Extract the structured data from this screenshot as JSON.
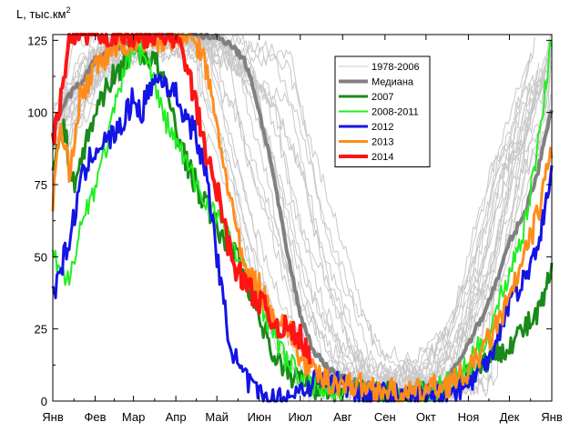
{
  "chart_data": {
    "type": "line",
    "ylabel": "L, тыс.км",
    "ylabel_sup": "2",
    "ylim": [
      0,
      127
    ],
    "yticks": [
      0,
      25,
      50,
      75,
      100,
      125
    ],
    "xlim": [
      0,
      365
    ],
    "month_labels": [
      "Янв",
      "Фев",
      "Мар",
      "Апр",
      "Май",
      "Июн",
      "Июл",
      "Авг",
      "Сен",
      "Окт",
      "Ноя",
      "Дек",
      "Янв"
    ],
    "month_days": [
      0,
      31,
      59,
      90,
      120,
      151,
      181,
      212,
      243,
      273,
      304,
      334,
      365
    ],
    "grid": false,
    "legend_position": "top-right-inside",
    "series": [
      {
        "name": "1978-2006",
        "color": "#c8c8c8",
        "width": 1,
        "kind": "band",
        "x": [
          0,
          31,
          59,
          90,
          120,
          140,
          151,
          165,
          181,
          200,
          212,
          243,
          273,
          290,
          304,
          320,
          334,
          350,
          365
        ],
        "y": [
          95,
          118,
          126,
          127,
          124,
          112,
          95,
          72,
          45,
          20,
          10,
          3,
          3,
          10,
          25,
          50,
          75,
          100,
          120
        ]
      },
      {
        "name": "Медиана",
        "color": "#808080",
        "width": 4,
        "x": [
          0,
          5,
          10,
          20,
          31,
          45,
          59,
          75,
          90,
          105,
          120,
          130,
          140,
          145,
          151,
          160,
          170,
          181,
          190,
          200,
          212,
          225,
          243,
          260,
          273,
          285,
          295,
          304,
          315,
          325,
          334,
          345,
          355,
          365
        ],
        "y": [
          95,
          100,
          105,
          110,
          118,
          122,
          126,
          127,
          127,
          127,
          126,
          124,
          118,
          112,
          100,
          82,
          55,
          30,
          18,
          12,
          8,
          6,
          4,
          3,
          4,
          6,
          12,
          20,
          30,
          42,
          55,
          65,
          80,
          102
        ]
      },
      {
        "name": "2007",
        "color": "#1a8a1a",
        "width": 3,
        "x": [
          0,
          8,
          15,
          25,
          31,
          40,
          50,
          59,
          65,
          75,
          85,
          90,
          100,
          110,
          120,
          128,
          135,
          142,
          151,
          160,
          170,
          181,
          192,
          205,
          212,
          225,
          243,
          258,
          273,
          288,
          304,
          320,
          334,
          345,
          355,
          365
        ],
        "y": [
          82,
          95,
          75,
          90,
          100,
          110,
          115,
          124,
          120,
          118,
          105,
          95,
          80,
          70,
          60,
          55,
          50,
          42,
          30,
          18,
          10,
          8,
          5,
          4,
          6,
          3,
          2,
          3,
          2,
          5,
          10,
          15,
          20,
          25,
          30,
          45
        ]
      },
      {
        "name": "2008-2011",
        "color": "#22ee22",
        "width": 2,
        "x": [
          0,
          10,
          20,
          31,
          40,
          50,
          59,
          70,
          80,
          90,
          100,
          110,
          120,
          130,
          140,
          151,
          160,
          170,
          181,
          195,
          212,
          230,
          243,
          258,
          273,
          290,
          304,
          320,
          334,
          345,
          352,
          358,
          365
        ],
        "y": [
          50,
          40,
          60,
          75,
          90,
          110,
          124,
          118,
          100,
          90,
          80,
          70,
          65,
          55,
          45,
          35,
          25,
          15,
          8,
          5,
          4,
          3,
          2,
          2,
          3,
          6,
          12,
          25,
          45,
          60,
          80,
          100,
          127
        ]
      },
      {
        "name": "2012",
        "color": "#1414e6",
        "width": 3,
        "x": [
          0,
          5,
          12,
          20,
          31,
          40,
          50,
          59,
          65,
          72,
          80,
          90,
          98,
          105,
          112,
          118,
          122,
          128,
          135,
          145,
          151,
          160,
          170,
          181,
          195,
          212,
          225,
          243,
          258,
          273,
          288,
          304,
          315,
          325,
          334,
          345,
          355,
          365
        ],
        "y": [
          36,
          45,
          55,
          75,
          88,
          90,
          95,
          105,
          100,
          110,
          112,
          106,
          98,
          92,
          78,
          60,
          42,
          25,
          12,
          5,
          2,
          0,
          1,
          4,
          8,
          6,
          3,
          2,
          1,
          2,
          3,
          6,
          12,
          22,
          35,
          42,
          55,
          78
        ]
      },
      {
        "name": "2013",
        "color": "#ff8c1a",
        "width": 3,
        "x": [
          0,
          5,
          12,
          20,
          31,
          40,
          50,
          59,
          70,
          80,
          90,
          100,
          110,
          120,
          130,
          140,
          151,
          160,
          170,
          181,
          190,
          200,
          212,
          230,
          243,
          258,
          273,
          290,
          304,
          320,
          334,
          345,
          355,
          365
        ],
        "y": [
          70,
          95,
          80,
          105,
          115,
          120,
          124,
          125,
          126,
          125,
          126,
          127,
          120,
          95,
          70,
          45,
          40,
          30,
          28,
          15,
          10,
          7,
          6,
          5,
          4,
          2,
          4,
          6,
          10,
          22,
          35,
          50,
          65,
          88
        ]
      },
      {
        "name": "2014",
        "color": "#ff1414",
        "width": 4,
        "x": [
          0,
          4,
          8,
          12,
          18,
          25,
          31,
          45,
          59,
          75,
          90,
          100,
          108,
          115,
          122,
          128,
          135,
          142,
          151,
          160,
          170,
          181,
          188
        ],
        "y": [
          90,
          100,
          110,
          125,
          127,
          127,
          127,
          127,
          127,
          127,
          127,
          112,
          95,
          80,
          70,
          55,
          45,
          40,
          35,
          28,
          25,
          22,
          15
        ]
      }
    ]
  }
}
